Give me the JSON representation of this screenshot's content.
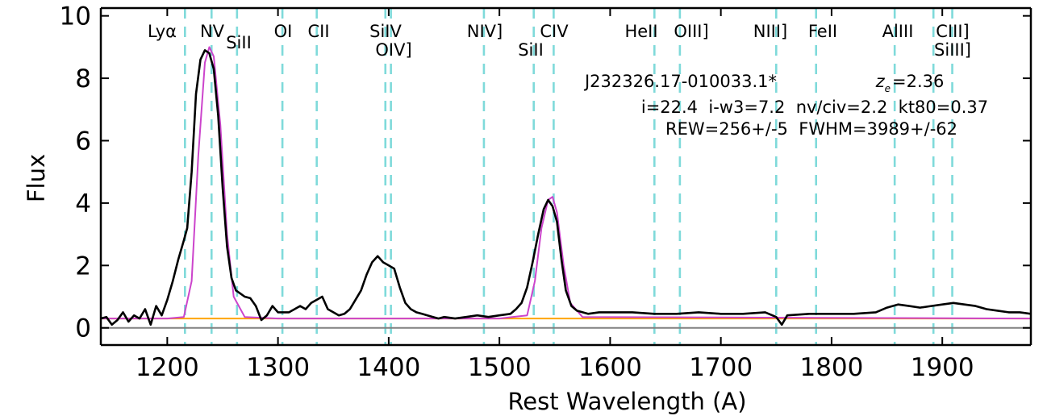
{
  "chart_data": {
    "type": "line",
    "xlabel": "Rest Wavelength (A)",
    "ylabel": "Flux",
    "xlim": [
      1140,
      1980
    ],
    "ylim": [
      -0.55,
      10.25
    ],
    "x_ticks": [
      1200,
      1300,
      1400,
      1500,
      1600,
      1700,
      1800,
      1900
    ],
    "y_ticks": [
      0,
      2,
      4,
      6,
      8,
      10
    ],
    "colors": {
      "spectrum": "#000000",
      "fit": "#cc44cc",
      "continuum": "#ffa500",
      "zero_line": "#808080",
      "emission_lines": "#7fdada"
    },
    "emission_lines": [
      {
        "label": "Lyα",
        "wavelength": 1216
      },
      {
        "label": "NV",
        "wavelength": 1240
      },
      {
        "label": "SiII",
        "wavelength": 1263
      },
      {
        "label": "OI",
        "wavelength": 1304
      },
      {
        "label": "CII",
        "wavelength": 1335
      },
      {
        "label": "SiIV",
        "wavelength": 1397
      },
      {
        "label": "OIV]",
        "wavelength": 1402
      },
      {
        "label": "NIV]",
        "wavelength": 1486
      },
      {
        "label": "SiII",
        "wavelength": 1531
      },
      {
        "label": "CIV",
        "wavelength": 1549
      },
      {
        "label": "HeII",
        "wavelength": 1640
      },
      {
        "label": "OIII]",
        "wavelength": 1663
      },
      {
        "label": "NIII]",
        "wavelength": 1750
      },
      {
        "label": "FeII",
        "wavelength": 1786
      },
      {
        "label": "AlIII",
        "wavelength": 1857
      },
      {
        "label": "SiIII]",
        "wavelength": 1892
      },
      {
        "label": "CIII]",
        "wavelength": 1909
      }
    ],
    "info": {
      "object": "J232326.17-010033.1*",
      "redshift_symbol": "z",
      "redshift_subscript": "e",
      "redshift_value": "=2.36",
      "line2": "i=22.4  i-w3=7.2  nv/civ=2.2  kt80=0.37",
      "line3": "REW=256+/-5  FWHM=3989+/-62"
    },
    "series": [
      {
        "role": "spectrum",
        "x": [
          1140,
          1145,
          1150,
          1155,
          1160,
          1165,
          1170,
          1175,
          1180,
          1185,
          1190,
          1195,
          1200,
          1205,
          1210,
          1215,
          1218,
          1222,
          1226,
          1230,
          1234,
          1238,
          1242,
          1246,
          1250,
          1254,
          1258,
          1262,
          1266,
          1270,
          1275,
          1280,
          1285,
          1290,
          1295,
          1300,
          1305,
          1310,
          1315,
          1320,
          1325,
          1330,
          1335,
          1340,
          1345,
          1350,
          1355,
          1360,
          1365,
          1370,
          1375,
          1380,
          1385,
          1390,
          1395,
          1400,
          1405,
          1410,
          1415,
          1420,
          1425,
          1430,
          1435,
          1440,
          1445,
          1450,
          1460,
          1470,
          1480,
          1490,
          1500,
          1510,
          1515,
          1520,
          1525,
          1530,
          1535,
          1540,
          1544,
          1548,
          1552,
          1556,
          1560,
          1565,
          1570,
          1580,
          1590,
          1600,
          1620,
          1640,
          1660,
          1680,
          1700,
          1720,
          1740,
          1750,
          1755,
          1760,
          1780,
          1800,
          1820,
          1840,
          1850,
          1860,
          1870,
          1880,
          1890,
          1900,
          1910,
          1920,
          1930,
          1940,
          1950,
          1960,
          1970,
          1980
        ],
        "y": [
          0.3,
          0.35,
          0.1,
          0.25,
          0.5,
          0.2,
          0.4,
          0.3,
          0.6,
          0.1,
          0.7,
          0.4,
          0.9,
          1.5,
          2.2,
          2.8,
          3.2,
          5.0,
          7.5,
          8.6,
          8.9,
          8.8,
          8.3,
          6.8,
          4.5,
          2.6,
          1.6,
          1.2,
          1.1,
          1.0,
          0.95,
          0.7,
          0.25,
          0.4,
          0.7,
          0.5,
          0.5,
          0.5,
          0.6,
          0.7,
          0.6,
          0.8,
          0.9,
          1.0,
          0.6,
          0.5,
          0.4,
          0.45,
          0.6,
          0.9,
          1.2,
          1.7,
          2.1,
          2.3,
          2.1,
          2.0,
          1.9,
          1.3,
          0.8,
          0.6,
          0.5,
          0.45,
          0.4,
          0.35,
          0.3,
          0.35,
          0.3,
          0.35,
          0.4,
          0.35,
          0.4,
          0.45,
          0.6,
          0.8,
          1.3,
          2.1,
          3.0,
          3.8,
          4.1,
          3.9,
          3.4,
          2.2,
          1.2,
          0.7,
          0.55,
          0.45,
          0.5,
          0.5,
          0.5,
          0.45,
          0.45,
          0.5,
          0.45,
          0.45,
          0.5,
          0.35,
          0.1,
          0.4,
          0.45,
          0.45,
          0.45,
          0.5,
          0.65,
          0.75,
          0.7,
          0.65,
          0.7,
          0.75,
          0.8,
          0.75,
          0.7,
          0.6,
          0.55,
          0.5,
          0.5,
          0.45
        ]
      },
      {
        "role": "fit",
        "x": [
          1140,
          1200,
          1215,
          1222,
          1228,
          1234,
          1238,
          1242,
          1248,
          1254,
          1260,
          1270,
          1300,
          1500,
          1525,
          1532,
          1538,
          1544,
          1548,
          1552,
          1558,
          1564,
          1575,
          1980
        ],
        "y": [
          0.3,
          0.3,
          0.35,
          1.5,
          5.5,
          8.5,
          9.0,
          8.7,
          6.5,
          3.0,
          1.0,
          0.35,
          0.3,
          0.3,
          0.4,
          1.5,
          3.2,
          4.1,
          4.2,
          3.7,
          2.0,
          0.8,
          0.35,
          0.3
        ]
      },
      {
        "role": "continuum",
        "x": [
          1140,
          1980
        ],
        "y": [
          0.3,
          0.3
        ]
      },
      {
        "role": "zero_line",
        "x": [
          1140,
          1980
        ],
        "y": [
          0,
          0
        ]
      }
    ]
  }
}
